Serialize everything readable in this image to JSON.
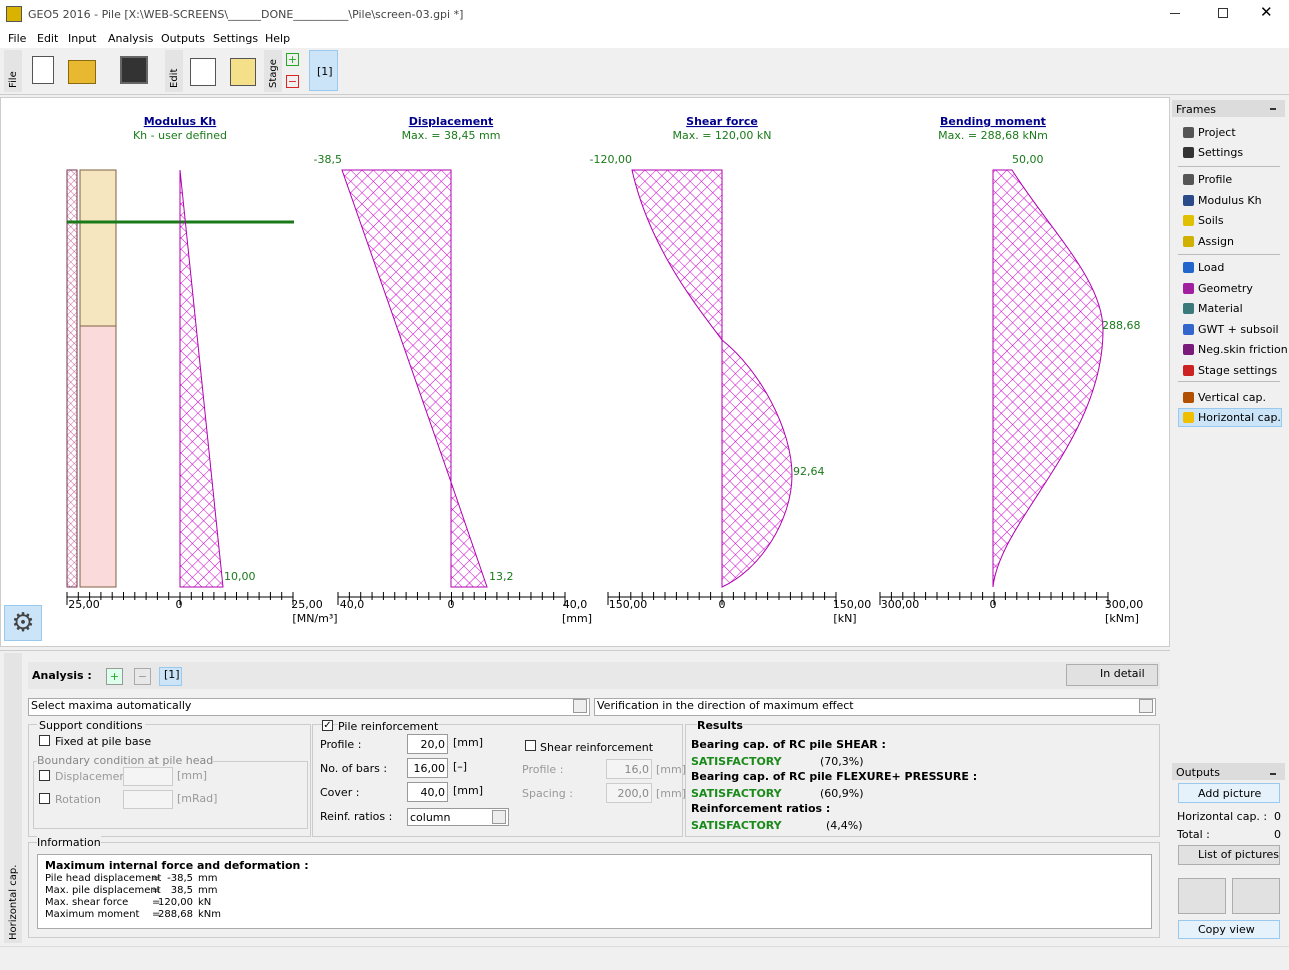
{
  "window": {
    "title": "GEO5 2016 - Pile [X:\\WEB-SCREENS\\______DONE__________\\Pile\\screen-03.gpi *]"
  },
  "menu": [
    "File",
    "Edit",
    "Input",
    "Analysis",
    "Outputs",
    "Settings",
    "Help"
  ],
  "toolbar": {
    "file": "File",
    "edit": "Edit",
    "stage": "Stage",
    "stage_id": "[1]"
  },
  "diagrams": [
    {
      "title": "Modulus Kh",
      "subtitle": "Kh - user defined",
      "axis_labels": [
        "25,00",
        "0",
        "25,00"
      ],
      "unit": "[MN/m³]",
      "value_labels": [
        "10,00"
      ]
    },
    {
      "title": "Displacement",
      "subtitle": "Max. = 38,45 mm",
      "axis_labels": [
        "40,0",
        "0",
        "40,0"
      ],
      "unit": "[mm]",
      "value_labels": [
        "-38,5",
        "13,2"
      ]
    },
    {
      "title": "Shear force",
      "subtitle": "Max. = 120,00 kN",
      "axis_labels": [
        "150,00",
        "0",
        "150,00"
      ],
      "unit": "[kN]",
      "value_labels": [
        "-120,00",
        "92,64"
      ]
    },
    {
      "title": "Bending moment",
      "subtitle": "Max. = 288,68 kNm",
      "axis_labels": [
        "300,00",
        "0",
        "300,00"
      ],
      "unit": "[kNm]",
      "value_labels": [
        "50,00",
        "288,68"
      ]
    }
  ],
  "frames": {
    "title": "Frames",
    "items": [
      "Project",
      "Settings",
      "Profile",
      "Modulus Kh",
      "Soils",
      "Assign",
      "Load",
      "Geometry",
      "Material",
      "GWT + subsoil",
      "Neg.skin friction",
      "Stage settings",
      "Vertical cap.",
      "Horizontal cap."
    ]
  },
  "outputs": {
    "title": "Outputs",
    "add_picture": "Add picture",
    "rows": [
      [
        "Horizontal cap. :",
        0
      ],
      [
        "Total :",
        0
      ]
    ],
    "list_of_pictures": "List of pictures",
    "copy_view": "Copy view"
  },
  "analysis": {
    "label": "Analysis :",
    "stage": "[1]",
    "in_detail": "In detail",
    "select_maxima": "Select maxima automatically",
    "verification": "Verification in the direction of maximum effect"
  },
  "support": {
    "title": "Support conditions",
    "fixed": "Fixed at pile base",
    "boundary": "Boundary condition at pile head",
    "displacement": "Displacement",
    "displacement_unit": "[mm]",
    "rotation": "Rotation",
    "rotation_unit": "[mRad]"
  },
  "reinforcement": {
    "title": "Pile reinforcement",
    "rows": [
      {
        "label": "Profile :",
        "value": "20,0",
        "unit": "[mm]"
      },
      {
        "label": "No. of bars :",
        "value": "16,00",
        "unit": "[–]"
      },
      {
        "label": "Cover :",
        "value": "40,0",
        "unit": "[mm]"
      }
    ],
    "ratios_label": "Reinf. ratios :",
    "ratios_value": "column"
  },
  "shear": {
    "title": "Shear reinforcement",
    "rows": [
      {
        "label": "Profile :",
        "value": "16,0",
        "unit": "[mm]"
      },
      {
        "label": "Spacing :",
        "value": "200,0",
        "unit": "[mm]"
      }
    ]
  },
  "results": {
    "title": "Results",
    "items": [
      {
        "heading": "Bearing cap. of RC pile SHEAR :",
        "status": "SATISFACTORY",
        "ratio": "(70,3%)"
      },
      {
        "heading": "Bearing cap. of RC pile FLEXURE+ PRESSURE :",
        "status": "SATISFACTORY",
        "ratio": "(60,9%)"
      },
      {
        "heading": "Reinforcement ratios :",
        "status": "SATISFACTORY",
        "ratio": "(4,4%)"
      }
    ]
  },
  "information": {
    "title": "Information",
    "heading": "Maximum internal force and deformation :",
    "rows": [
      [
        "Pile head displacement",
        "=",
        "-38,5",
        "mm"
      ],
      [
        "Max. pile displacement",
        "=",
        "38,5",
        "mm"
      ],
      [
        "Max. shear force",
        "=",
        "120,00",
        "kN"
      ],
      [
        "Maximum moment",
        "=",
        "288,68",
        "kNm"
      ]
    ]
  },
  "side_tab": "Horizontal cap."
}
